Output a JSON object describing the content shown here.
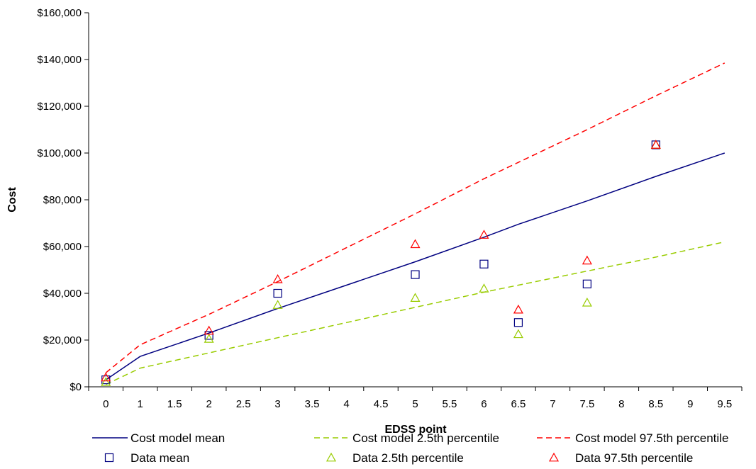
{
  "chart_data": {
    "type": "line",
    "title": "",
    "xlabel": "EDSS point",
    "ylabel": "Cost",
    "x_ticks": [
      "0",
      "1",
      "1.5",
      "2",
      "2.5",
      "3",
      "3.5",
      "4",
      "4.5",
      "5",
      "5.5",
      "6",
      "6.5",
      "7",
      "7.5",
      "8",
      "8.5",
      "9",
      "9.5"
    ],
    "y_ticks": [
      "$0",
      "$20,000",
      "$40,000",
      "$60,000",
      "$80,000",
      "$100,000",
      "$120,000",
      "$140,000",
      "$160,000"
    ],
    "ylim": [
      0,
      160000
    ],
    "grid": false,
    "legend_position": "bottom",
    "series": [
      {
        "name": "Cost model mean",
        "kind": "line",
        "dash": "solid",
        "color": "#000080",
        "points": [
          [
            0,
            3000
          ],
          [
            1,
            13000
          ],
          [
            2,
            23000
          ],
          [
            3,
            33500
          ],
          [
            4,
            43500
          ],
          [
            5,
            53500
          ],
          [
            6,
            64000
          ],
          [
            6.5,
            69500
          ],
          [
            7.5,
            79500
          ],
          [
            8.5,
            90000
          ],
          [
            9.5,
            100000
          ]
        ]
      },
      {
        "name": "Cost model 2.5th percentile",
        "kind": "line",
        "dash": "dashed",
        "color": "#99CC00",
        "points": [
          [
            0,
            1000
          ],
          [
            1,
            8000
          ],
          [
            2,
            14500
          ],
          [
            3,
            21000
          ],
          [
            4,
            27500
          ],
          [
            5,
            34000
          ],
          [
            6,
            40500
          ],
          [
            6.5,
            43500
          ],
          [
            7.5,
            49500
          ],
          [
            8.5,
            55500
          ],
          [
            9.5,
            62000
          ]
        ]
      },
      {
        "name": "Cost model 97.5th percentile",
        "kind": "line",
        "dash": "dashed",
        "color": "#FF0000",
        "points": [
          [
            0,
            6000
          ],
          [
            1,
            18000
          ],
          [
            2,
            31000
          ],
          [
            3,
            45000
          ],
          [
            4,
            59500
          ],
          [
            5,
            74000
          ],
          [
            6,
            89000
          ],
          [
            6.5,
            96000
          ],
          [
            7.5,
            110000
          ],
          [
            8.5,
            124500
          ],
          [
            9.5,
            138500
          ]
        ]
      },
      {
        "name": "Data mean",
        "kind": "marker",
        "marker": "square",
        "color": "#000080",
        "points": [
          [
            0,
            3000
          ],
          [
            2,
            22000
          ],
          [
            3,
            40000
          ],
          [
            5,
            48000
          ],
          [
            6,
            52500
          ],
          [
            6.5,
            27500
          ],
          [
            7.5,
            44000
          ],
          [
            8.5,
            103500
          ]
        ]
      },
      {
        "name": "Data 2.5th percentile",
        "kind": "marker",
        "marker": "triangle",
        "color": "#99CC00",
        "points": [
          [
            0,
            2000
          ],
          [
            2,
            20500
          ],
          [
            3,
            35000
          ],
          [
            5,
            38000
          ],
          [
            6,
            42000
          ],
          [
            6.5,
            22500
          ],
          [
            7.5,
            36000
          ],
          [
            8.5,
            103500
          ]
        ]
      },
      {
        "name": "Data 97.5th percentile",
        "kind": "marker",
        "marker": "triangle",
        "color": "#FF0000",
        "points": [
          [
            0,
            4000
          ],
          [
            2,
            24000
          ],
          [
            3,
            46000
          ],
          [
            5,
            61000
          ],
          [
            6,
            65000
          ],
          [
            6.5,
            33000
          ],
          [
            7.5,
            54000
          ],
          [
            8.5,
            103500
          ]
        ]
      }
    ]
  }
}
